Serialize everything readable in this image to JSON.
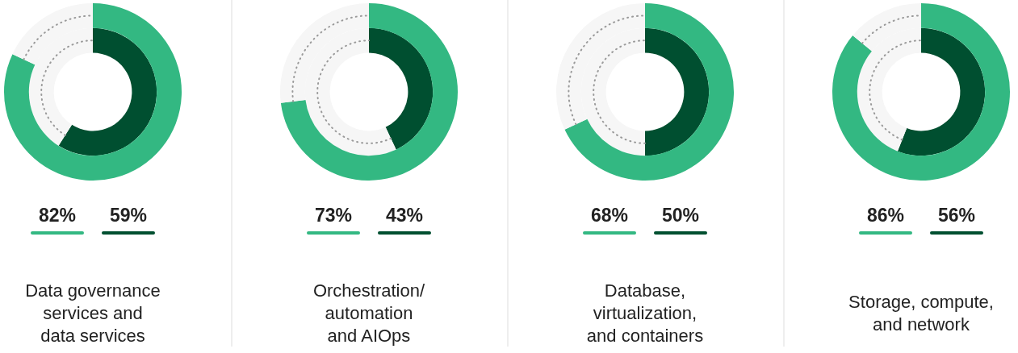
{
  "chart_data": [
    {
      "type": "donut",
      "title": "Data governance\nservices and\ndata services",
      "data_labels": true,
      "series": [
        {
          "colors": [
            "#33b882",
            "#f6f6f6"
          ],
          "values": [
            82,
            18
          ],
          "value_labels": [
            "82%",
            null
          ]
        },
        {
          "colors": [
            "#004f30",
            "#f6f6f6"
          ],
          "values": [
            59,
            41
          ],
          "value_labels": [
            "59%",
            null
          ]
        }
      ]
    },
    {
      "type": "donut",
      "title": "Orchestration/\nautomation\nand AIOps",
      "data_labels": true,
      "series": [
        {
          "colors": [
            "#33b882",
            "#f6f6f6"
          ],
          "values": [
            73,
            27
          ],
          "value_labels": [
            "73%",
            null
          ]
        },
        {
          "colors": [
            "#004f30",
            "#f6f6f6"
          ],
          "values": [
            43,
            57
          ],
          "value_labels": [
            "43%",
            null
          ]
        }
      ]
    },
    {
      "type": "donut",
      "title": "Database,\nvirtualization,\nand containers",
      "data_labels": true,
      "series": [
        {
          "colors": [
            "#33b882",
            "#f6f6f6"
          ],
          "values": [
            68,
            32
          ],
          "value_labels": [
            "68%",
            null
          ]
        },
        {
          "colors": [
            "#004f30",
            "#f6f6f6"
          ],
          "values": [
            50,
            50
          ],
          "value_labels": [
            "50%",
            null
          ]
        }
      ]
    },
    {
      "type": "donut",
      "title": "Storage, compute,\nand network",
      "data_labels": true,
      "series": [
        {
          "colors": [
            "#33b882",
            "#f6f6f6"
          ],
          "values": [
            86,
            14
          ],
          "value_labels": [
            "86%",
            null
          ]
        },
        {
          "colors": [
            "#004f30",
            "#f6f6f6"
          ],
          "values": [
            56,
            44
          ],
          "value_labels": [
            "56%",
            null
          ]
        }
      ]
    }
  ]
}
